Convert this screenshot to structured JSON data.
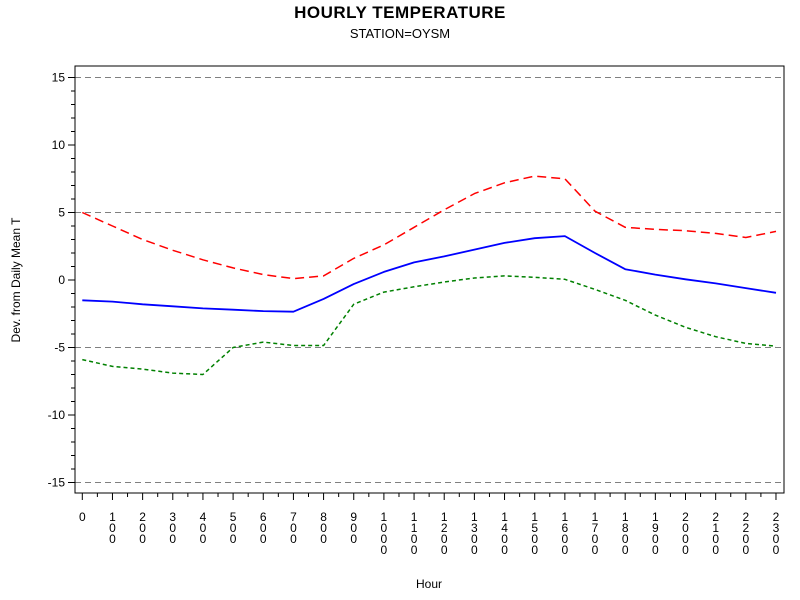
{
  "chart_data": {
    "type": "line",
    "title": "HOURLY TEMPERATURE",
    "subtitle": "STATION=OYSM",
    "xlabel": "Hour",
    "ylabel": "Dev. from Daily Mean T",
    "x": [
      0,
      100,
      200,
      300,
      400,
      500,
      600,
      700,
      800,
      900,
      1000,
      1100,
      1200,
      1300,
      1400,
      1500,
      1600,
      1700,
      1800,
      1900,
      2000,
      2100,
      2200,
      2300
    ],
    "series": [
      {
        "name": "red",
        "color": "#FF0000",
        "line_style": "dashed",
        "values": [
          5.0,
          4.0,
          3.0,
          2.2,
          1.5,
          0.9,
          0.4,
          0.1,
          0.3,
          1.6,
          2.6,
          3.9,
          5.2,
          6.4,
          7.2,
          7.7,
          7.5,
          5.1,
          3.9,
          3.75,
          3.65,
          3.45,
          3.15,
          3.6
        ]
      },
      {
        "name": "blue",
        "color": "#0000FF",
        "line_style": "solid",
        "values": [
          -1.5,
          -1.6,
          -1.8,
          -1.95,
          -2.1,
          -2.2,
          -2.3,
          -2.35,
          -1.4,
          -0.3,
          0.6,
          1.3,
          1.75,
          2.25,
          2.75,
          3.1,
          3.25,
          2.0,
          0.8,
          0.4,
          0.05,
          -0.25,
          -0.6,
          -0.95
        ]
      },
      {
        "name": "green",
        "color": "#008000",
        "line_style": "short-dashed",
        "values": [
          -5.9,
          -6.4,
          -6.6,
          -6.9,
          -7.0,
          -5.0,
          -4.6,
          -4.85,
          -4.85,
          -1.8,
          -0.9,
          -0.5,
          -0.15,
          0.15,
          0.3,
          0.2,
          0.05,
          -0.7,
          -1.5,
          -2.6,
          -3.5,
          -4.2,
          -4.7,
          -4.9
        ]
      }
    ],
    "ylim": [
      -15,
      15
    ],
    "y_major_ticks": [
      15,
      10,
      5,
      0,
      -5,
      -10,
      -15
    ],
    "y_minor_step": 1,
    "reference_lines": [
      15,
      5,
      -5,
      -15
    ],
    "reference_line_color": "#808080",
    "grid": "dashed horizontal reference lines only",
    "legend": "none",
    "frame": "full box"
  }
}
